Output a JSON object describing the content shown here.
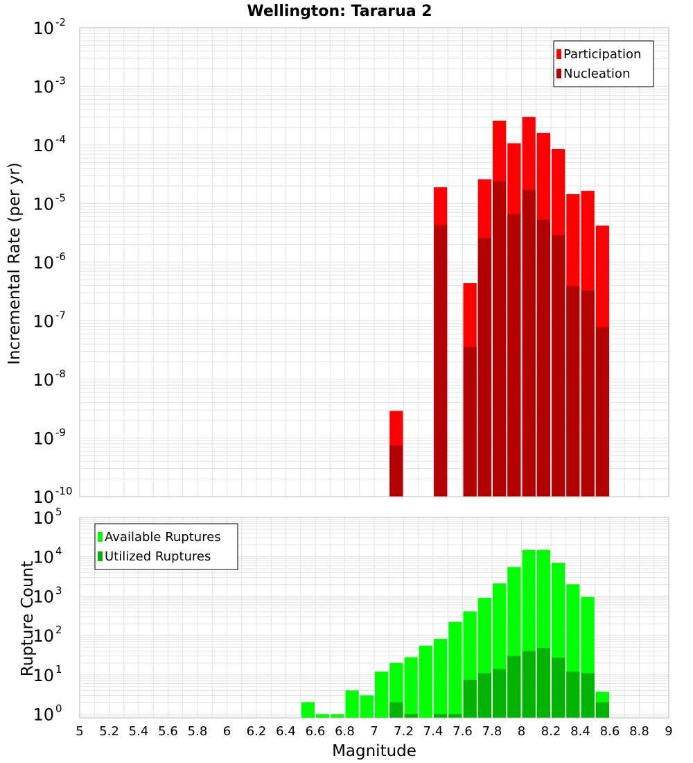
{
  "chart_data": [
    {
      "type": "bar",
      "title": "Wellington: Tararua 2",
      "xlabel": "",
      "ylabel": "Incremental Rate (per yr)",
      "xlim": [
        5,
        9
      ],
      "ylim": [
        1e-10,
        0.01
      ],
      "yscale": "log",
      "y_ticks": [
        {
          "base": "10",
          "exp": "-2"
        },
        {
          "base": "10",
          "exp": "-3"
        },
        {
          "base": "10",
          "exp": "-4"
        },
        {
          "base": "10",
          "exp": "-5"
        },
        {
          "base": "10",
          "exp": "-6"
        },
        {
          "base": "10",
          "exp": "-7"
        },
        {
          "base": "10",
          "exp": "-8"
        },
        {
          "base": "10",
          "exp": "-9"
        },
        {
          "base": "10",
          "exp": "-10"
        }
      ],
      "grid": true,
      "legend_position": "top-right",
      "bin_width": 0.1,
      "series": [
        {
          "name": "Participation",
          "color": "#ff0000",
          "points": [
            {
              "x": 7.15,
              "y": 2.9e-09
            },
            {
              "x": 7.45,
              "y": 1.9e-05
            },
            {
              "x": 7.65,
              "y": 4.4e-07
            },
            {
              "x": 7.75,
              "y": 2.6e-05
            },
            {
              "x": 7.85,
              "y": 0.00026
            },
            {
              "x": 7.95,
              "y": 0.000107
            },
            {
              "x": 8.05,
              "y": 0.0003
            },
            {
              "x": 8.15,
              "y": 0.00016
            },
            {
              "x": 8.25,
              "y": 8.5e-05
            },
            {
              "x": 8.35,
              "y": 1.45e-05
            },
            {
              "x": 8.45,
              "y": 1.65e-05
            },
            {
              "x": 8.55,
              "y": 4.2e-06
            }
          ]
        },
        {
          "name": "Nucleation",
          "color": "#b30000",
          "points": [
            {
              "x": 7.15,
              "y": 7.5e-10
            },
            {
              "x": 7.45,
              "y": 4.3e-06
            },
            {
              "x": 7.65,
              "y": 3.6e-08
            },
            {
              "x": 7.75,
              "y": 2.6e-06
            },
            {
              "x": 7.85,
              "y": 2.4e-05
            },
            {
              "x": 7.95,
              "y": 6.6e-06
            },
            {
              "x": 8.05,
              "y": 1.7e-05
            },
            {
              "x": 8.15,
              "y": 5.3e-06
            },
            {
              "x": 8.25,
              "y": 2.9e-06
            },
            {
              "x": 8.35,
              "y": 3.9e-07
            },
            {
              "x": 8.45,
              "y": 3.3e-07
            },
            {
              "x": 8.55,
              "y": 7.8e-08
            }
          ]
        }
      ]
    },
    {
      "type": "bar",
      "title": "",
      "xlabel": "Magnitude",
      "ylabel": "Rupture Count",
      "xlim": [
        5,
        9
      ],
      "ylim": [
        0.8,
        100000
      ],
      "yscale": "log",
      "x_ticks": [
        "5",
        "5.2",
        "5.4",
        "5.6",
        "5.8",
        "6",
        "6.2",
        "6.4",
        "6.6",
        "6.8",
        "7",
        "7.2",
        "7.4",
        "7.6",
        "7.8",
        "8",
        "8.2",
        "8.4",
        "8.6",
        "8.8",
        "9"
      ],
      "y_ticks": [
        {
          "base": "10",
          "exp": "5"
        },
        {
          "base": "10",
          "exp": "4"
        },
        {
          "base": "10",
          "exp": "3"
        },
        {
          "base": "10",
          "exp": "2"
        },
        {
          "base": "10",
          "exp": "1"
        },
        {
          "base": "10",
          "exp": "0"
        }
      ],
      "grid": true,
      "legend_position": "top-left",
      "bin_width": 0.1,
      "series": [
        {
          "name": "Available Ruptures",
          "color": "#00ff00",
          "points": [
            {
              "x": 6.55,
              "y": 2
            },
            {
              "x": 6.65,
              "y": 1
            },
            {
              "x": 6.75,
              "y": 1
            },
            {
              "x": 6.85,
              "y": 4
            },
            {
              "x": 6.95,
              "y": 3
            },
            {
              "x": 7.05,
              "y": 12
            },
            {
              "x": 7.15,
              "y": 20
            },
            {
              "x": 7.25,
              "y": 28
            },
            {
              "x": 7.35,
              "y": 55
            },
            {
              "x": 7.45,
              "y": 82
            },
            {
              "x": 7.55,
              "y": 220
            },
            {
              "x": 7.65,
              "y": 410
            },
            {
              "x": 7.75,
              "y": 900
            },
            {
              "x": 7.85,
              "y": 2100
            },
            {
              "x": 7.95,
              "y": 5500
            },
            {
              "x": 8.05,
              "y": 15000
            },
            {
              "x": 8.15,
              "y": 15000
            },
            {
              "x": 8.25,
              "y": 7000
            },
            {
              "x": 8.35,
              "y": 2000
            },
            {
              "x": 8.45,
              "y": 950
            },
            {
              "x": 8.55,
              "y": 3.7
            }
          ]
        },
        {
          "name": "Utilized Ruptures",
          "color": "#00b300",
          "points": [
            {
              "x": 7.15,
              "y": 2
            },
            {
              "x": 7.25,
              "y": 1
            },
            {
              "x": 7.45,
              "y": 1
            },
            {
              "x": 7.55,
              "y": 1
            },
            {
              "x": 7.65,
              "y": 7.5
            },
            {
              "x": 7.75,
              "y": 11
            },
            {
              "x": 7.85,
              "y": 14
            },
            {
              "x": 7.95,
              "y": 30
            },
            {
              "x": 8.05,
              "y": 40
            },
            {
              "x": 8.15,
              "y": 48
            },
            {
              "x": 8.25,
              "y": 27
            },
            {
              "x": 8.35,
              "y": 12
            },
            {
              "x": 8.45,
              "y": 11
            },
            {
              "x": 8.55,
              "y": 2
            }
          ]
        }
      ]
    }
  ]
}
